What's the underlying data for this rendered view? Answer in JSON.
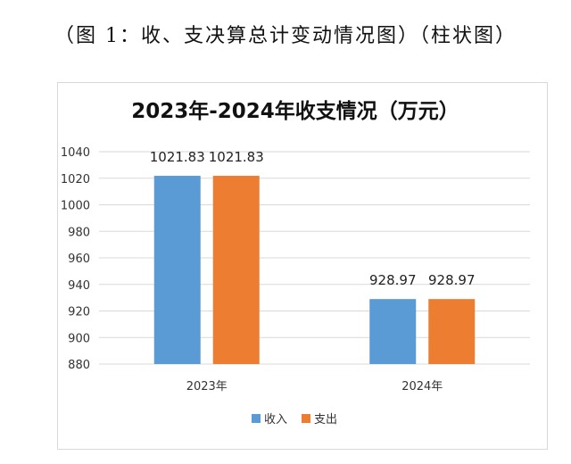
{
  "caption": "（图 1：收、支决算总计变动情况图）（柱状图）",
  "chart_data": {
    "type": "bar",
    "title": "2023年-2024年收支情况（万元）",
    "categories": [
      "2023年",
      "2024年"
    ],
    "series": [
      {
        "name": "收入",
        "values": [
          1021.83,
          928.97
        ],
        "color": "#5b9bd5"
      },
      {
        "name": "支出",
        "values": [
          1021.83,
          928.97
        ],
        "color": "#ed7d31"
      }
    ],
    "data_labels": [
      [
        "1021.83",
        "928.97"
      ],
      [
        "1021.83",
        "928.97"
      ]
    ],
    "ylim": [
      880,
      1040
    ],
    "yticks": [
      880,
      900,
      920,
      940,
      960,
      980,
      1000,
      1020,
      1040
    ],
    "grid": true,
    "legend_position": "bottom"
  }
}
